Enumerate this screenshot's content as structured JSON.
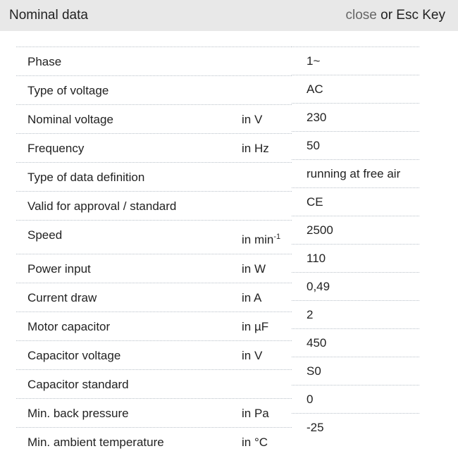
{
  "header": {
    "title": "Nominal data",
    "close_label": "close",
    "close_suffix": " or Esc Key"
  },
  "rows": [
    {
      "label": "Phase",
      "unit": "",
      "value": "1~"
    },
    {
      "label": "Type of voltage",
      "unit": "",
      "value": "AC"
    },
    {
      "label": "Nominal voltage",
      "unit": "in V",
      "value": "230"
    },
    {
      "label": "Frequency",
      "unit": "in Hz",
      "value": "50"
    },
    {
      "label": "Type of data definition",
      "unit": "",
      "value": "running at free air"
    },
    {
      "label": "Valid for approval / standard",
      "unit": "",
      "value": "CE"
    },
    {
      "label": "Speed",
      "unit": "in min",
      "unit_sup": "-1",
      "value": "2500"
    },
    {
      "label": "Power input",
      "unit": "in W",
      "value": "110"
    },
    {
      "label": "Current draw",
      "unit": "in A",
      "value": "0,49"
    },
    {
      "label": "Motor capacitor",
      "unit": "in µF",
      "value": "2"
    },
    {
      "label": "Capacitor voltage",
      "unit": "in V",
      "value": "450"
    },
    {
      "label": "Capacitor standard",
      "unit": "",
      "value": "S0"
    },
    {
      "label": "Min. back pressure",
      "unit": "in Pa",
      "value": "0"
    },
    {
      "label": "Min. ambient temperature",
      "unit": "in °C",
      "value": "-25"
    }
  ]
}
